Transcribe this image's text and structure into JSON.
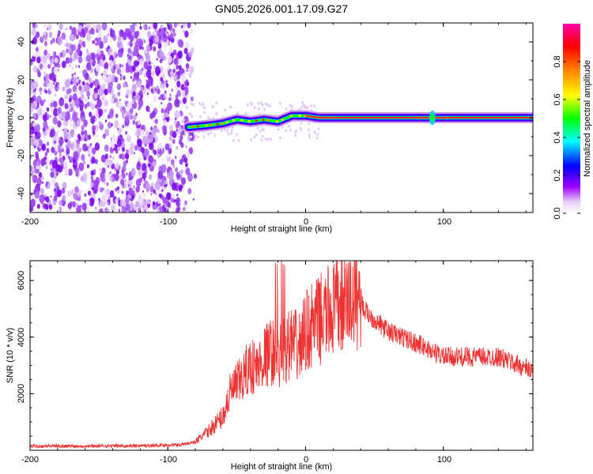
{
  "title": "GN05.2026.001.17.09.G27",
  "chart_data": [
    {
      "type": "heatmap",
      "title": "GN05.2026.001.17.09.G27",
      "xlabel": "Height of straight line (km)",
      "ylabel": "Frequency (Hz)",
      "xlim": [
        -200,
        165
      ],
      "ylim": [
        -50,
        50
      ],
      "xticks": [
        "-200",
        "-100",
        "0",
        "100"
      ],
      "yticks": [
        "-40",
        "-20",
        "0",
        "20",
        "40"
      ],
      "colorbar": {
        "label": "Normalized spectral amplitude",
        "range": [
          0,
          1
        ],
        "ticks": [
          "0.0",
          "0.2",
          "0.4",
          "0.6",
          "0.8"
        ],
        "colors": [
          "#ffffff",
          "#e4c8f8",
          "#9d00ff",
          "#0000ff",
          "#00ffff",
          "#00ff00",
          "#ffff00",
          "#ff8800",
          "#ff0000",
          "#ff00aa"
        ]
      },
      "noise_region_km": [
        -200,
        -80
      ],
      "signal_track": [
        {
          "x": -85,
          "y": -5
        },
        {
          "x": -70,
          "y": -4
        },
        {
          "x": -60,
          "y": -3
        },
        {
          "x": -50,
          "y": -1
        },
        {
          "x": -40,
          "y": -2
        },
        {
          "x": -30,
          "y": -1
        },
        {
          "x": -20,
          "y": -2
        },
        {
          "x": -10,
          "y": 1
        },
        {
          "x": 0,
          "y": 1
        },
        {
          "x": 10,
          "y": 0
        },
        {
          "x": 50,
          "y": 0
        },
        {
          "x": 92,
          "y": 0
        },
        {
          "x": 165,
          "y": 0
        }
      ]
    },
    {
      "type": "line",
      "xlabel": "Height of straight line (km)",
      "ylabel": "SNR (10 * v/v)",
      "xlim": [
        -200,
        165
      ],
      "ylim": [
        0,
        6700
      ],
      "xticks": [
        "-200",
        "-100",
        "0",
        "100"
      ],
      "yticks": [
        "2000",
        "4000",
        "6000"
      ],
      "series": [
        {
          "name": "SNR",
          "color": "#ee3333",
          "x": [
            -200,
            -160,
            -120,
            -90,
            -80,
            -70,
            -60,
            -55,
            -50,
            -45,
            -40,
            -35,
            -30,
            -25,
            -20,
            -15,
            -10,
            -5,
            0,
            10,
            20,
            30,
            40,
            42,
            50,
            60,
            80,
            100,
            120,
            140,
            165
          ],
          "y": [
            150,
            150,
            160,
            200,
            300,
            700,
            1200,
            2000,
            2300,
            2600,
            3000,
            2900,
            3300,
            3500,
            3300,
            3600,
            3800,
            3600,
            4200,
            4600,
            5000,
            5200,
            5500,
            5000,
            4600,
            4200,
            3800,
            3300,
            3300,
            3300,
            2800
          ]
        }
      ]
    }
  ]
}
